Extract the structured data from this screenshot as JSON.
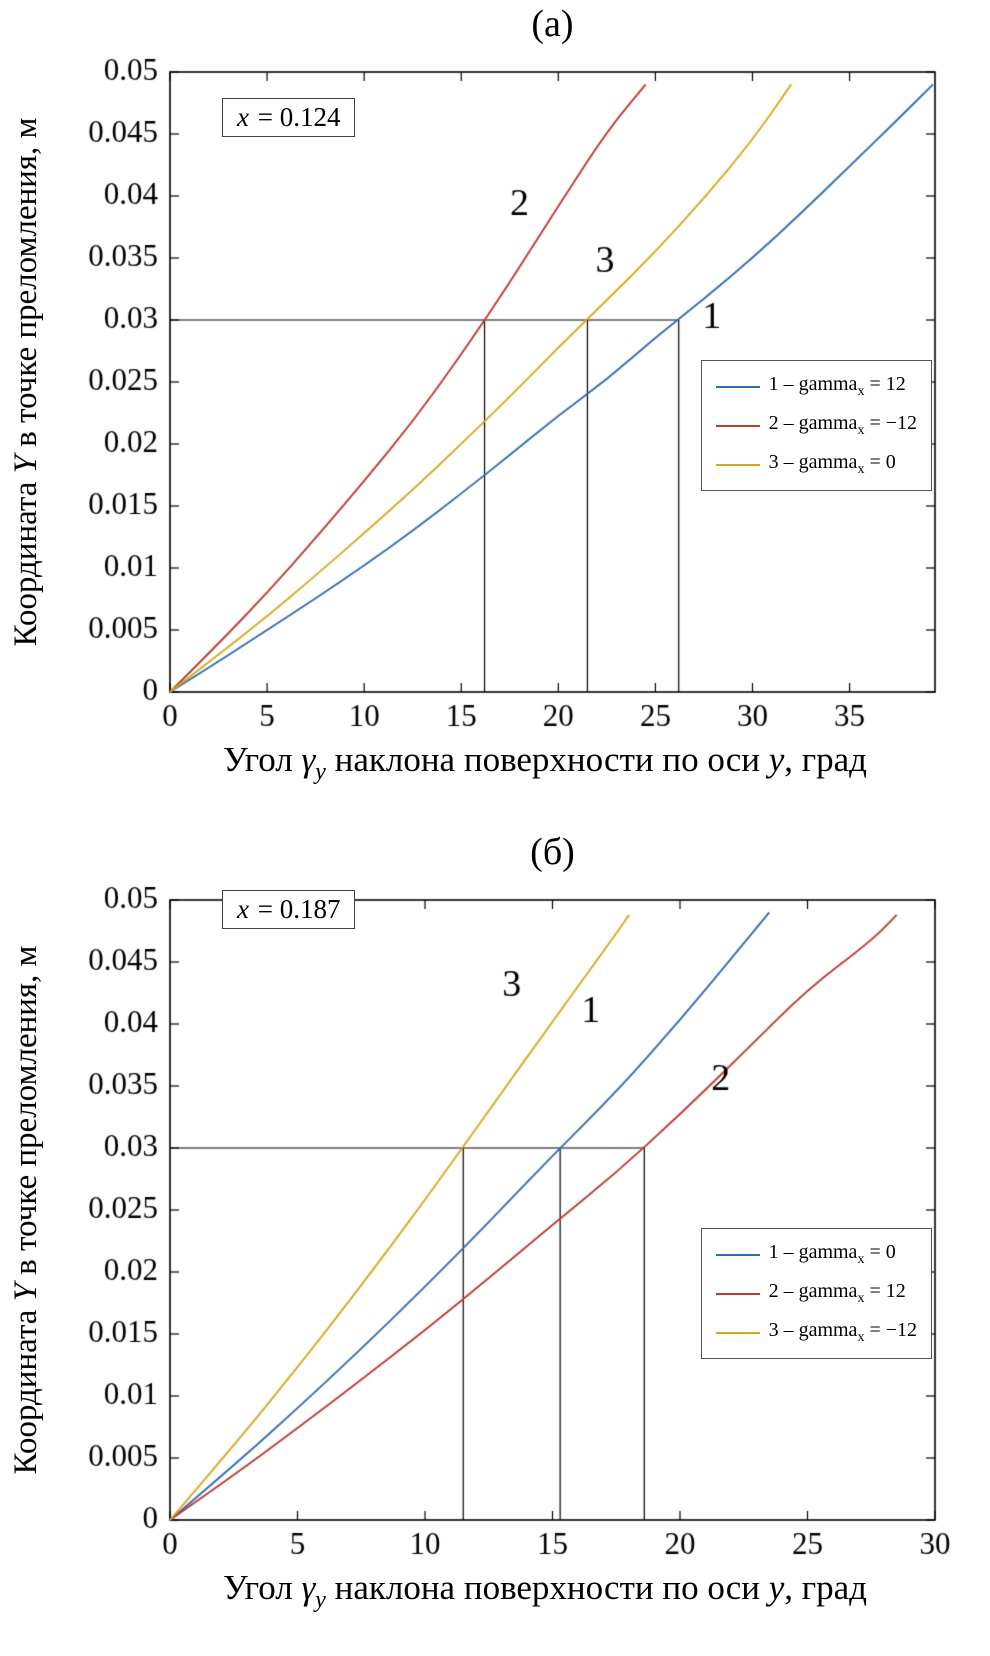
{
  "chart_data": [
    {
      "type": "line",
      "title": "(а)",
      "annotation": {
        "var": "x",
        "value": " = 0.124"
      },
      "ylabel_parts": {
        "p1": "Координата ",
        "var": "Y",
        "p2": " в точке преломления, м"
      },
      "xlabel_parts": {
        "p1": "Угол ",
        "gamma": "γ",
        "gamma_sub": "y",
        "p2": " наклона поверхности по оси ",
        "var": "y",
        "p3": ", град"
      },
      "xlim": [
        0,
        39.4
      ],
      "ylim": [
        0,
        0.05
      ],
      "xticks": [
        0,
        5,
        10,
        15,
        20,
        25,
        30,
        35
      ],
      "yticks": [
        0,
        0.005,
        0.01,
        0.015,
        0.02,
        0.025,
        0.03,
        0.035,
        0.04,
        0.045,
        0.05
      ],
      "grid": false,
      "legend_position": "middle-right",
      "series": [
        {
          "name": "1",
          "legend_prefix": "1 – gamma",
          "legend_sub": "x",
          "legend_suffix": " = 12",
          "color": "#2f6db6",
          "points": [
            [
              0,
              0
            ],
            [
              2.5,
              0.00245
            ],
            [
              5,
              0.005
            ],
            [
              7.5,
              0.00755
            ],
            [
              10,
              0.0102
            ],
            [
              12.5,
              0.013
            ],
            [
              15,
              0.016
            ],
            [
              17.5,
              0.0191
            ],
            [
              20,
              0.0223
            ],
            [
              22.5,
              0.0252
            ],
            [
              25,
              0.0286
            ],
            [
              27.5,
              0.0317
            ],
            [
              30,
              0.035
            ],
            [
              32.5,
              0.0386
            ],
            [
              35,
              0.0424
            ],
            [
              37.5,
              0.0462
            ],
            [
              39.3,
              0.049
            ]
          ]
        },
        {
          "name": "2",
          "legend_prefix": "2 – gamma",
          "legend_sub": "x",
          "legend_suffix": " = −12",
          "color": "#bf3a30",
          "points": [
            [
              0,
              0
            ],
            [
              2.5,
              0.0039
            ],
            [
              5,
              0.008
            ],
            [
              7.5,
              0.0124
            ],
            [
              10,
              0.017
            ],
            [
              12.5,
              0.0218
            ],
            [
              15,
              0.0272
            ],
            [
              17.5,
              0.033
            ],
            [
              20,
              0.0392
            ],
            [
              22.5,
              0.0452
            ],
            [
              24.5,
              0.049
            ]
          ]
        },
        {
          "name": "3",
          "legend_prefix": "3 – gamma",
          "legend_sub": "x",
          "legend_suffix": " = 0",
          "color": "#d9a820",
          "points": [
            [
              0,
              0
            ],
            [
              2.5,
              0.003
            ],
            [
              5,
              0.0061
            ],
            [
              7.5,
              0.0094
            ],
            [
              10,
              0.0128
            ],
            [
              12.5,
              0.0163
            ],
            [
              15,
              0.02
            ],
            [
              17.5,
              0.0238
            ],
            [
              20,
              0.0278
            ],
            [
              22.5,
              0.0316
            ],
            [
              25,
              0.0355
            ],
            [
              27.5,
              0.0398
            ],
            [
              30,
              0.0445
            ],
            [
              32,
              0.049
            ]
          ]
        }
      ],
      "ref_lines": {
        "y": 0.03,
        "x_values": [
          16.2,
          21.5,
          26.2
        ]
      },
      "curve_labels": [
        {
          "text": "2",
          "x": 18.0,
          "y": 0.0393
        },
        {
          "text": "3",
          "x": 22.4,
          "y": 0.0347
        },
        {
          "text": "1",
          "x": 27.9,
          "y": 0.0302
        }
      ]
    },
    {
      "type": "line",
      "title": "(б)",
      "annotation": {
        "var": "x",
        "value": " = 0.187"
      },
      "ylabel_parts": {
        "p1": "Координата ",
        "var": "Y",
        "p2": " в точке преломления, м"
      },
      "xlabel_parts": {
        "p1": "Угол ",
        "gamma": "γ",
        "gamma_sub": "y",
        "p2": " наклона поверхности по оси ",
        "var": "y",
        "p3": ", град"
      },
      "xlim": [
        0,
        30
      ],
      "ylim": [
        0,
        0.05
      ],
      "xticks": [
        0,
        5,
        10,
        15,
        20,
        25,
        30
      ],
      "yticks": [
        0,
        0.005,
        0.01,
        0.015,
        0.02,
        0.025,
        0.03,
        0.035,
        0.04,
        0.045,
        0.05
      ],
      "grid": false,
      "legend_position": "lower-right",
      "series": [
        {
          "name": "1",
          "legend_prefix": "1 – gamma",
          "legend_sub": "x",
          "legend_suffix": " = 0",
          "color": "#2f6db6",
          "points": [
            [
              0,
              0
            ],
            [
              2.5,
              0.0044
            ],
            [
              5,
              0.009
            ],
            [
              7.5,
              0.0138
            ],
            [
              10,
              0.0188
            ],
            [
              12.5,
              0.024
            ],
            [
              15,
              0.0294
            ],
            [
              17.5,
              0.0345
            ],
            [
              20,
              0.0403
            ],
            [
              22.5,
              0.0465
            ],
            [
              23.5,
              0.049
            ]
          ]
        },
        {
          "name": "2",
          "legend_prefix": "2 – gamma",
          "legend_sub": "x",
          "legend_suffix": " = 12",
          "color": "#bf3a30",
          "points": [
            [
              0,
              0
            ],
            [
              2.5,
              0.0036
            ],
            [
              5,
              0.0074
            ],
            [
              7.5,
              0.0113
            ],
            [
              10,
              0.0153
            ],
            [
              12.5,
              0.0195
            ],
            [
              15,
              0.0238
            ],
            [
              17.5,
              0.028
            ],
            [
              20,
              0.0327
            ],
            [
              22.5,
              0.0377
            ],
            [
              25,
              0.0428
            ],
            [
              27.5,
              0.0467
            ],
            [
              28.5,
              0.0488
            ]
          ]
        },
        {
          "name": "3",
          "legend_prefix": "3 – gamma",
          "legend_sub": "x",
          "legend_suffix": " = −12",
          "color": "#d9a820",
          "points": [
            [
              0,
              0
            ],
            [
              2.5,
              0.006
            ],
            [
              5,
              0.0123
            ],
            [
              7.5,
              0.0189
            ],
            [
              10,
              0.0258
            ],
            [
              12.5,
              0.033
            ],
            [
              15,
              0.0402
            ],
            [
              17.5,
              0.0473
            ],
            [
              18,
              0.0488
            ]
          ]
        }
      ],
      "ref_lines": {
        "y": 0.03,
        "x_values": [
          11.5,
          15.3,
          18.6
        ]
      },
      "curve_labels": [
        {
          "text": "3",
          "x": 13.4,
          "y": 0.0431
        },
        {
          "text": "1",
          "x": 16.5,
          "y": 0.041
        },
        {
          "text": "2",
          "x": 21.6,
          "y": 0.0355
        }
      ]
    }
  ]
}
